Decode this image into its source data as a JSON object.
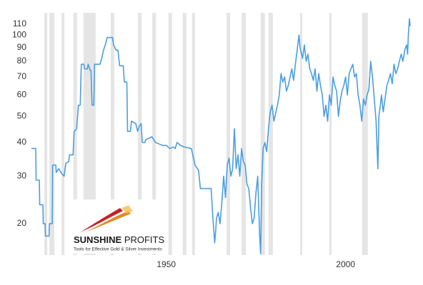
{
  "chart_data": {
    "type": "line",
    "log_y": true,
    "xlim": [
      1911.6,
      2018.2
    ],
    "ylim": [
      15.3,
      121
    ],
    "xticks": [
      1950,
      2000
    ],
    "yticks": [
      20,
      30,
      40,
      50,
      60,
      70,
      80,
      90,
      100,
      110
    ],
    "grid": false,
    "recession_color": "#e5e5e5",
    "recessions": [
      [
        1916.0,
        1916.8
      ],
      [
        1917.4,
        1918.8
      ],
      [
        1920.8,
        1921.6
      ],
      [
        1924.1,
        1925.1
      ],
      [
        1926.9,
        1930.3
      ],
      [
        1934.5,
        1935.5
      ],
      [
        1942.1,
        1943.1
      ],
      [
        1946.1,
        1947.1
      ],
      [
        1950.6,
        1951.6
      ],
      [
        1954.6,
        1955.6
      ],
      [
        1957.2,
        1958.0
      ],
      [
        1966.8,
        1967.8
      ],
      [
        1971.0,
        1972.2
      ],
      [
        1976.3,
        1977.5
      ],
      [
        1978.5,
        1979.7
      ],
      [
        1987.3,
        1987.9
      ],
      [
        1995.5,
        1996.1
      ],
      [
        2004.6,
        2006.2
      ]
    ],
    "logo": {
      "brand_bold": "SUNSHINE",
      "brand_light": "PROFITS",
      "tagline": "Tools for Effective Gold & Silver Investments"
    },
    "series": [
      {
        "color": "#4b9ee0",
        "x": [
          1912.4,
          1913.6,
          1913.7,
          1914.6,
          1914.7,
          1915.6,
          1915.7,
          1916.2,
          1916.3,
          1917.3,
          1917.4,
          1918.2,
          1918.3,
          1919.2,
          1919.3,
          1920.0,
          1920.6,
          1921.0,
          1921.5,
          1922,
          1922.8,
          1923,
          1924,
          1924.3,
          1925,
          1925.5,
          1926,
          1926.3,
          1927,
          1927.2,
          1928,
          1928.2,
          1928.8,
          1929,
          1929.3,
          1929.8,
          1930,
          1931.5,
          1932,
          1932.5,
          1933,
          1933.5,
          1935,
          1935.3,
          1936,
          1936.5,
          1937,
          1938,
          1938.3,
          1939,
          1939.2,
          1940,
          1940.3,
          1941.5,
          1942,
          1942.5,
          1943,
          1943.3,
          1944,
          1944.3,
          1946,
          1947,
          1948,
          1949,
          1950,
          1951,
          1952,
          1952.5,
          1953,
          1954,
          1955,
          1957,
          1958,
          1959,
          1959.5,
          1961,
          1962.5,
          1963,
          1963.5,
          1963.8,
          1964,
          1964.5,
          1965,
          1965.5,
          1966,
          1966.5,
          1967,
          1967.5,
          1968,
          1968.5,
          1969,
          1969.5,
          1970,
          1970.5,
          1971,
          1971.5,
          1972,
          1972.5,
          1973,
          1973.5,
          1974,
          1974.5,
          1975,
          1975.5,
          1976,
          1976.3,
          1976.6,
          1977,
          1977.5,
          1978,
          1978.5,
          1979,
          1979.5,
          1980,
          1981,
          1981.5,
          1982,
          1982.5,
          1983,
          1983.5,
          1984,
          1985,
          1985.5,
          1986,
          1986.5,
          1987,
          1987.3,
          1988,
          1988.5,
          1989,
          1989.5,
          1990,
          1990.5,
          1991,
          1991.5,
          1992,
          1992.5,
          1993,
          1993.5,
          1994,
          1994.5,
          1995,
          1995.5,
          1996,
          1996.5,
          1997,
          1997.5,
          1998,
          1998.5,
          1999,
          1999.5,
          2000,
          2000.5,
          2001,
          2001.5,
          2002,
          2002.5,
          2003,
          2003.5,
          2004,
          2004.5,
          2005,
          2005.5,
          2006,
          2006.5,
          2007,
          2007.5,
          2008,
          2008.5,
          2009,
          2009.3,
          2009.7,
          2010,
          2010.5,
          2011,
          2011.5,
          2012,
          2012.5,
          2013,
          2013.5,
          2014,
          2014.5,
          2015,
          2015.5,
          2016,
          2016.5,
          2017,
          2017.3,
          2017.5,
          2017.8,
          2018
        ],
        "values": [
          38,
          38,
          29,
          29,
          23.5,
          23.5,
          20,
          20,
          18,
          18,
          20,
          20,
          33,
          33,
          31,
          32,
          31,
          30.5,
          30,
          33.5,
          34,
          36,
          36,
          44,
          45,
          55,
          55,
          78,
          78,
          75,
          75,
          78,
          74,
          74,
          55,
          55,
          78,
          78,
          82,
          88,
          92,
          98,
          98,
          92,
          88,
          88,
          77,
          77,
          67,
          67,
          44,
          44,
          48,
          47,
          44,
          46,
          47,
          40,
          40,
          41,
          42,
          40,
          39.5,
          39,
          39,
          38,
          38.5,
          38,
          40,
          39,
          38.5,
          38,
          33,
          31.5,
          27,
          27,
          27,
          21,
          17,
          19,
          21,
          22,
          20,
          24,
          30,
          25,
          33,
          35,
          30,
          32,
          45,
          32,
          36,
          30,
          38,
          34,
          33,
          28,
          27,
          23,
          20,
          21,
          26,
          30,
          18.5,
          15.5,
          28,
          38,
          40,
          37,
          45,
          52,
          55,
          48,
          55,
          60,
          72,
          67,
          70,
          62,
          65,
          75,
          68,
          78,
          88,
          100,
          90,
          82,
          92,
          80,
          85,
          75,
          72,
          68,
          75,
          62,
          72,
          65,
          60,
          50,
          55,
          48,
          60,
          55,
          70,
          65,
          62,
          50,
          57,
          62,
          65,
          70,
          60,
          72,
          75,
          78,
          70,
          72,
          60,
          55,
          48,
          58,
          55,
          60,
          63,
          80,
          70,
          58,
          48,
          32,
          50,
          55,
          60,
          52,
          58,
          65,
          68,
          72,
          66,
          78,
          72,
          75,
          80,
          85,
          80,
          88,
          92,
          85,
          100,
          115,
          108
        ]
      }
    ]
  }
}
